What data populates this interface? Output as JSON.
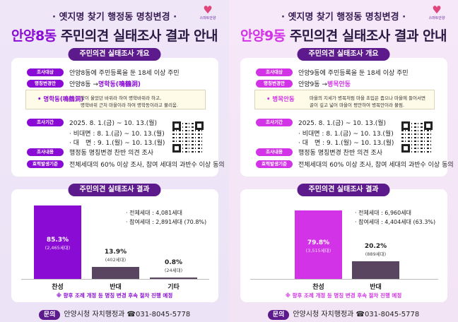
{
  "panels": [
    {
      "accent": "#8a0bd4",
      "subtitle": "· 옛지명 찾기 행정동 명칭변경 ·",
      "title_highlight": "안양8동",
      "title_rest": " 주민의견 실태조사 결과 안내",
      "logo_text": "스마트안양",
      "overview_pill": "주민의견 실태조사 개요",
      "target_tag": "조사대상",
      "target": "안양8동에 주민등록을 둔 18세 이상 주민",
      "rename_tag": "명칭변경안",
      "rename_from": "안양8동 → ",
      "rename_to": "명학동(鳴鶴洞)",
      "note_key": "• 명학동(鳴鶴洞)",
      "note_line1": "학이 울었던 바위라 하여 명학바위라 하고,",
      "note_line2": "명학바위 근처 마을이라 하여 명학동이라고 불리움.",
      "period_tag": "조사기간",
      "period": "2025. 8. 1.(금) ~ 10. 13.(월)",
      "period_online": "· 비대면 : 8. 1.(금) ~ 10. 13.(월)",
      "period_offline": "· 대　면 : 9. 1.(월) ~ 10. 13.(월)",
      "content_tag": "조사내용",
      "content": "행정동 명칭변경 찬반 의견 조사",
      "criteria_tag": "효력발생기준",
      "criteria": "전체세대의 60% 이상 조사, 참여 세대의 과반수 이상 동의",
      "results_pill": "주민의견 실태조사 결과",
      "total": "· 전체세대 : 4,081세대",
      "participants": "· 참여세대 : 2,891세대 (70.8%)",
      "footnote": "※ 향후 조례 개정 등 명칭 변경 후속 절차 진행 예정",
      "contact_tag": "문의",
      "contact": "안양시청 자치행정과 ☎031-8045-5778",
      "chart_data": {
        "type": "bar",
        "categories": [
          "찬성",
          "반대",
          "기타"
        ],
        "values": [
          85.3,
          13.9,
          0.8
        ],
        "value_labels": [
          "85.3%",
          "13.9%",
          "0.8%"
        ],
        "count_labels": [
          "(2,465세대)",
          "(402세대)",
          "(24세대)"
        ],
        "colors": [
          "#8a0bd4",
          "#5a4560",
          "#5a4560"
        ],
        "ylim": [
          0,
          100
        ]
      }
    },
    {
      "accent": "#d233e6",
      "subtitle": "· 옛지명 찾기 행정동 명칭변경 ·",
      "title_highlight": "안양9동",
      "title_rest": " 주민의견 실태조사 결과 안내",
      "logo_text": "스마트안양",
      "overview_pill": "주민의견 실태조사 개요",
      "target_tag": "조사대상",
      "target": "안양9동에 주민등록을 둔 18세 이상 주민",
      "rename_tag": "명칭변경안",
      "rename_from": "안양9동 → ",
      "rename_to": "병목안동",
      "note_key": "• 병목안동",
      "note_line1": "마을의 지세가 병목처럼 마을 초입은 좁으나 마을에 들어서면",
      "note_line2": "골이 깊고 넓어 마을이 평안하여 병목안이라 불림.",
      "period_tag": "조사기간",
      "period": "2025. 8. 1.(금) ~ 10. 13.(월)",
      "period_online": "· 비대면 : 8. 1.(금) ~ 10. 13.(월)",
      "period_offline": "· 대　면 : 9. 1.(월) ~ 10. 13.(월)",
      "content_tag": "조사내용",
      "content": "행정동 명칭변경 찬반 의견 조사",
      "criteria_tag": "효력발생기준",
      "criteria": "전체세대의 60% 이상 조사, 참여 세대의 과반수 이상 동의",
      "results_pill": "주민의견 실태조사 결과",
      "total": "· 전체세대 : 6,960세대",
      "participants": "· 참여세대 : 4,404세대 (63.3%)",
      "footnote": "※ 향후 조례 개정 등 명칭 변경 후속 절차 진행 예정",
      "contact_tag": "문의",
      "contact": "안양시청 자치행정과 ☎031-8045-5778",
      "chart_data": {
        "type": "bar",
        "categories": [
          "찬성",
          "반대"
        ],
        "values": [
          79.8,
          20.2
        ],
        "value_labels": [
          "79.8%",
          "20.2%"
        ],
        "count_labels": [
          "(3,515세대)",
          "(889세대)"
        ],
        "colors": [
          "#d233e6",
          "#5a4560"
        ],
        "ylim": [
          0,
          100
        ]
      }
    }
  ]
}
